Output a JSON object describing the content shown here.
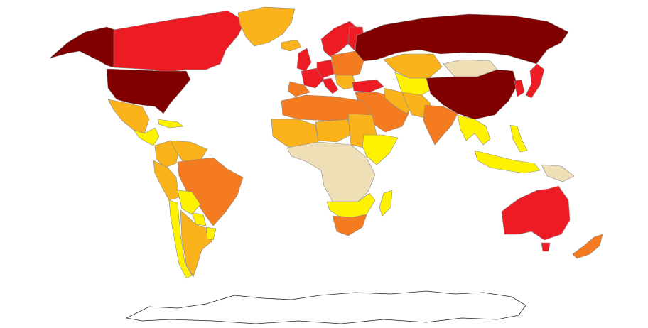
{
  "map": {
    "type": "choropleth-world",
    "legend": "none",
    "palette": {
      "level_5": "#800000",
      "level_4": "#ed1c24",
      "level_3": "#f47b20",
      "level_2": "#fab31b",
      "level_1": "#fff200",
      "level_0": "#eedfb7",
      "no_data": "#ffffff"
    },
    "regions": [
      {
        "id": "alaska",
        "level": "level_5"
      },
      {
        "id": "canada",
        "level": "level_4"
      },
      {
        "id": "usa",
        "level": "level_5"
      },
      {
        "id": "greenland",
        "level": "level_2"
      },
      {
        "id": "mexico",
        "level": "level_2"
      },
      {
        "id": "central-america",
        "level": "level_1"
      },
      {
        "id": "cuba",
        "level": "level_1"
      },
      {
        "id": "colombia",
        "level": "level_2"
      },
      {
        "id": "venezuela",
        "level": "level_2"
      },
      {
        "id": "ecuador-peru",
        "level": "level_2"
      },
      {
        "id": "brazil",
        "level": "level_3"
      },
      {
        "id": "bolivia",
        "level": "level_1"
      },
      {
        "id": "paraguay",
        "level": "level_1"
      },
      {
        "id": "chile",
        "level": "level_1"
      },
      {
        "id": "argentina",
        "level": "level_2"
      },
      {
        "id": "uruguay",
        "level": "level_1"
      },
      {
        "id": "iceland",
        "level": "level_2"
      },
      {
        "id": "uk",
        "level": "level_4"
      },
      {
        "id": "scandinavia",
        "level": "level_4"
      },
      {
        "id": "finland",
        "level": "level_4"
      },
      {
        "id": "france",
        "level": "level_4"
      },
      {
        "id": "iberia",
        "level": "level_3"
      },
      {
        "id": "germany",
        "level": "level_4"
      },
      {
        "id": "italy",
        "level": "level_4"
      },
      {
        "id": "eastern-europe",
        "level": "level_3"
      },
      {
        "id": "balkans",
        "level": "level_2"
      },
      {
        "id": "turkey",
        "level": "level_4"
      },
      {
        "id": "russia",
        "level": "level_5"
      },
      {
        "id": "kazakhstan",
        "level": "level_2"
      },
      {
        "id": "central-asia",
        "level": "level_1"
      },
      {
        "id": "mongolia",
        "level": "level_0"
      },
      {
        "id": "china",
        "level": "level_5"
      },
      {
        "id": "korea",
        "level": "level_4"
      },
      {
        "id": "japan",
        "level": "level_4"
      },
      {
        "id": "middle-east",
        "level": "level_3"
      },
      {
        "id": "iran",
        "level": "level_2"
      },
      {
        "id": "afghanistan-pakistan",
        "level": "level_2"
      },
      {
        "id": "india",
        "level": "level_3"
      },
      {
        "id": "southeast-asia",
        "level": "level_1"
      },
      {
        "id": "indonesia",
        "level": "level_1"
      },
      {
        "id": "philippines",
        "level": "level_1"
      },
      {
        "id": "papua",
        "level": "level_0"
      },
      {
        "id": "north-africa",
        "level": "level_3"
      },
      {
        "id": "sahel",
        "level": "level_2"
      },
      {
        "id": "west-africa",
        "level": "level_2"
      },
      {
        "id": "sudan",
        "level": "level_2"
      },
      {
        "id": "horn-of-africa",
        "level": "level_1"
      },
      {
        "id": "central-africa",
        "level": "level_0"
      },
      {
        "id": "southern-africa",
        "level": "level_1"
      },
      {
        "id": "south-africa",
        "level": "level_3"
      },
      {
        "id": "madagascar",
        "level": "level_1"
      },
      {
        "id": "australia",
        "level": "level_4"
      },
      {
        "id": "tasmania",
        "level": "level_4"
      },
      {
        "id": "new-zealand",
        "level": "level_3"
      },
      {
        "id": "antarctica",
        "level": "no_data"
      }
    ]
  }
}
